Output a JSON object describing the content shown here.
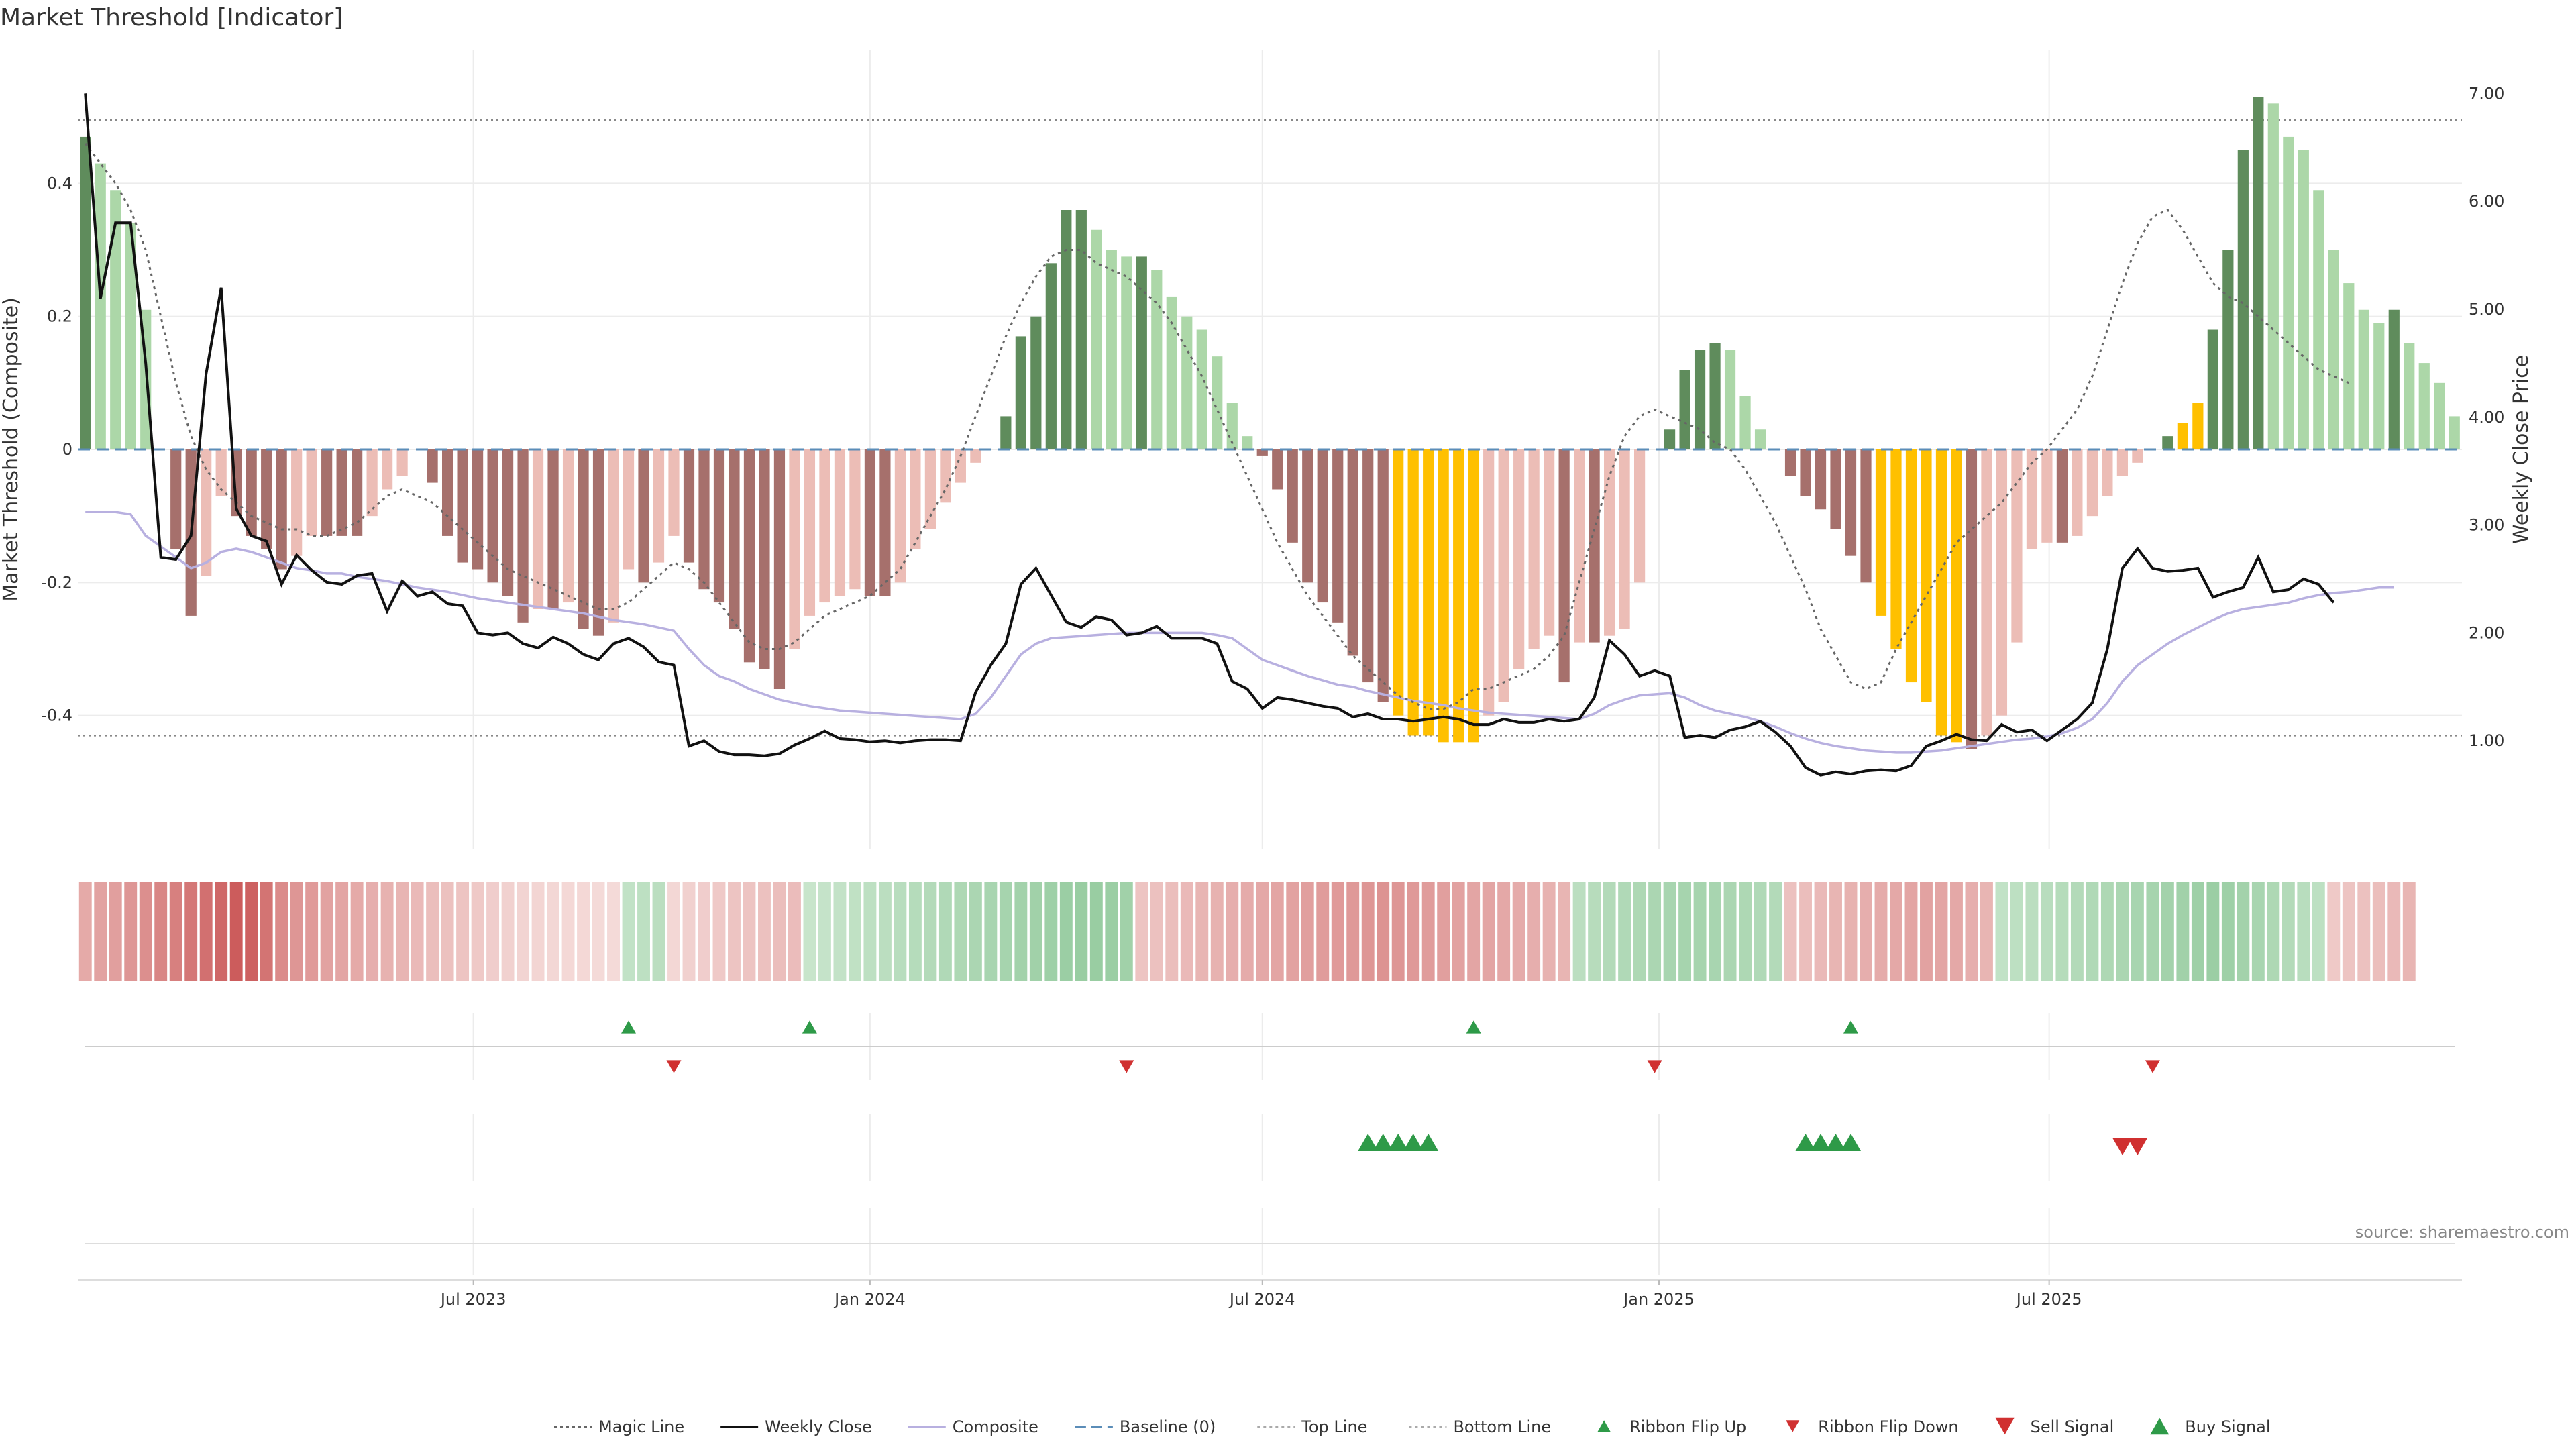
{
  "title": "Market Threshold [Indicator]",
  "source": "source: sharemaestro.com",
  "colors": {
    "pos_strong": "#5f8c5c",
    "pos_light": "#acd7a8",
    "neg_strong": "#a6706c",
    "neg_light": "#ecbdb6",
    "extreme": "#ffc000",
    "price": "#111111",
    "composite": "#b8b0e0",
    "magic": "#666666",
    "baseline": "#5b8db8",
    "threshold": "#888888",
    "buy": "#2e9a48",
    "sell": "#d03030",
    "grid": "#ececec"
  },
  "chart_data": {
    "type": "bar",
    "title": "Market Threshold [Indicator]",
    "ylabel": "Market Threshold (Composite)",
    "y2label": "Weekly Close Price",
    "ylim": [
      -0.6,
      0.6
    ],
    "y2lim": [
      0.0,
      7.4
    ],
    "yticks": [
      0.4,
      0.2,
      0,
      -0.2,
      -0.4
    ],
    "ytick_labels": [
      "0.4",
      "0.2",
      "0",
      "-0.2",
      "-0.4"
    ],
    "y2ticks": [
      7,
      6,
      5,
      4,
      3,
      2,
      1
    ],
    "y2tick_labels": [
      "7.00",
      "6.00",
      "5.00",
      "4.00",
      "3.00",
      "2.00",
      "1.00"
    ],
    "x_start": "2023-01-02",
    "x_step_days": 7,
    "xticks": [
      {
        "date": "2023-07-01",
        "label": "Jul 2023"
      },
      {
        "date": "2024-01-01",
        "label": "Jan 2024"
      },
      {
        "date": "2024-07-01",
        "label": "Jul 2024"
      },
      {
        "date": "2025-01-01",
        "label": "Jan 2025"
      },
      {
        "date": "2025-07-01",
        "label": "Jul 2025"
      }
    ],
    "top_line": 0.495,
    "bottom_line": -0.43,
    "baseline": 0,
    "bars": [
      0.47,
      0.43,
      0.39,
      0.34,
      0.21,
      0,
      -0.15,
      -0.25,
      -0.19,
      -0.07,
      -0.1,
      -0.13,
      -0.15,
      -0.18,
      -0.16,
      -0.13,
      -0.13,
      -0.13,
      -0.13,
      -0.1,
      -0.06,
      -0.04,
      0,
      -0.05,
      -0.13,
      -0.17,
      -0.18,
      -0.2,
      -0.22,
      -0.26,
      -0.24,
      -0.24,
      -0.23,
      -0.27,
      -0.28,
      -0.26,
      -0.18,
      -0.2,
      -0.17,
      -0.13,
      -0.17,
      -0.21,
      -0.23,
      -0.27,
      -0.32,
      -0.33,
      -0.36,
      -0.3,
      -0.25,
      -0.23,
      -0.22,
      -0.21,
      -0.22,
      -0.22,
      -0.2,
      -0.15,
      -0.12,
      -0.08,
      -0.05,
      -0.02,
      0,
      0.05,
      0.17,
      0.2,
      0.28,
      0.36,
      0.36,
      0.33,
      0.3,
      0.29,
      0.29,
      0.27,
      0.23,
      0.2,
      0.18,
      0.14,
      0.07,
      0.02,
      -0.01,
      -0.06,
      -0.14,
      -0.2,
      -0.23,
      -0.26,
      -0.31,
      -0.35,
      -0.38,
      -0.4,
      -0.43,
      -0.43,
      -0.44,
      -0.44,
      -0.44,
      -0.4,
      -0.38,
      -0.33,
      -0.3,
      -0.28,
      -0.35,
      -0.29,
      -0.29,
      -0.28,
      -0.27,
      -0.2,
      0,
      0.03,
      0.12,
      0.15,
      0.16,
      0.15,
      0.08,
      0.03,
      0,
      -0.04,
      -0.07,
      -0.09,
      -0.12,
      -0.16,
      -0.2,
      -0.25,
      -0.3,
      -0.35,
      -0.38,
      -0.43,
      -0.44,
      -0.45,
      -0.43,
      -0.4,
      -0.29,
      -0.15,
      -0.14,
      -0.14,
      -0.13,
      -0.1,
      -0.07,
      -0.04,
      -0.02,
      0,
      0.02,
      0.04,
      0.07,
      0.18,
      0.3,
      0.45,
      0.53,
      0.52,
      0.47,
      0.45,
      0.39,
      0.3,
      0.25,
      0.21,
      0.19,
      0.21,
      0.16,
      0.13,
      0.1,
      0.05
    ],
    "extreme_indices": [
      87,
      88,
      89,
      90,
      91,
      92,
      119,
      120,
      121,
      122,
      123,
      124,
      139,
      140
    ],
    "price": [
      7.0,
      5.1,
      5.8,
      5.8,
      4.5,
      2.7,
      2.68,
      2.9,
      4.4,
      5.2,
      3.15,
      2.9,
      2.85,
      2.45,
      2.72,
      2.58,
      2.47,
      2.45,
      2.53,
      2.55,
      2.2,
      2.48,
      2.34,
      2.38,
      2.27,
      2.25,
      2.0,
      1.98,
      2.0,
      1.9,
      1.86,
      1.96,
      1.9,
      1.8,
      1.75,
      1.9,
      1.95,
      1.87,
      1.73,
      1.7,
      0.95,
      1.0,
      0.9,
      0.87,
      0.87,
      0.86,
      0.88,
      0.96,
      1.02,
      1.09,
      1.02,
      1.01,
      0.99,
      1.0,
      0.98,
      1.0,
      1.01,
      1.01,
      1.0,
      1.45,
      1.7,
      1.9,
      2.45,
      2.6,
      2.35,
      2.1,
      2.05,
      2.15,
      2.12,
      1.98,
      2.0,
      2.06,
      1.95,
      1.95,
      1.95,
      1.9,
      1.55,
      1.48,
      1.3,
      1.4,
      1.38,
      1.35,
      1.32,
      1.3,
      1.22,
      1.25,
      1.2,
      1.2,
      1.18,
      1.2,
      1.22,
      1.2,
      1.15,
      1.15,
      1.2,
      1.17,
      1.17,
      1.2,
      1.18,
      1.2,
      1.4,
      1.93,
      1.8,
      1.6,
      1.65,
      1.6,
      1.03,
      1.05,
      1.03,
      1.1,
      1.13,
      1.18,
      1.08,
      0.95,
      0.75,
      0.68,
      0.71,
      0.69,
      0.72,
      0.73,
      0.72,
      0.77,
      0.95,
      1.0,
      1.06,
      1.01,
      1.0,
      1.15,
      1.08,
      1.1,
      1.0,
      1.1,
      1.2,
      1.35,
      1.85,
      2.6,
      2.78,
      2.6,
      2.57,
      2.58,
      2.6,
      2.33,
      2.38,
      2.42,
      2.7,
      2.38,
      2.4,
      2.5,
      2.45,
      2.28
    ],
    "composite": [
      3.12,
      3.12,
      3.12,
      3.1,
      2.9,
      2.8,
      2.7,
      2.6,
      2.65,
      2.75,
      2.78,
      2.75,
      2.7,
      2.65,
      2.6,
      2.58,
      2.55,
      2.55,
      2.52,
      2.5,
      2.48,
      2.45,
      2.42,
      2.4,
      2.38,
      2.35,
      2.32,
      2.3,
      2.28,
      2.26,
      2.24,
      2.22,
      2.2,
      2.18,
      2.15,
      2.12,
      2.1,
      2.08,
      2.05,
      2.02,
      1.85,
      1.7,
      1.6,
      1.55,
      1.48,
      1.43,
      1.38,
      1.35,
      1.32,
      1.3,
      1.28,
      1.27,
      1.26,
      1.25,
      1.24,
      1.23,
      1.22,
      1.21,
      1.2,
      1.25,
      1.4,
      1.6,
      1.8,
      1.9,
      1.95,
      1.96,
      1.97,
      1.98,
      1.99,
      2.0,
      2.0,
      2.0,
      2.0,
      2.0,
      2.0,
      1.98,
      1.95,
      1.85,
      1.75,
      1.7,
      1.65,
      1.6,
      1.56,
      1.52,
      1.5,
      1.46,
      1.43,
      1.4,
      1.37,
      1.35,
      1.33,
      1.3,
      1.28,
      1.26,
      1.25,
      1.24,
      1.23,
      1.22,
      1.21,
      1.2,
      1.25,
      1.33,
      1.38,
      1.42,
      1.43,
      1.44,
      1.4,
      1.33,
      1.28,
      1.25,
      1.22,
      1.18,
      1.13,
      1.07,
      1.02,
      0.98,
      0.95,
      0.93,
      0.91,
      0.9,
      0.89,
      0.89,
      0.9,
      0.91,
      0.93,
      0.95,
      0.97,
      0.99,
      1.01,
      1.02,
      1.04,
      1.07,
      1.12,
      1.2,
      1.35,
      1.55,
      1.7,
      1.8,
      1.9,
      1.98,
      2.05,
      2.12,
      2.18,
      2.22,
      2.24,
      2.26,
      2.28,
      2.32,
      2.35,
      2.37,
      2.38,
      2.4,
      2.42,
      2.42
    ],
    "magic_line": [
      0.46,
      0.43,
      0.4,
      0.36,
      0.3,
      0.2,
      0.1,
      0.02,
      -0.03,
      -0.06,
      -0.08,
      -0.1,
      -0.11,
      -0.12,
      -0.12,
      -0.13,
      -0.13,
      -0.12,
      -0.11,
      -0.09,
      -0.07,
      -0.06,
      -0.07,
      -0.08,
      -0.1,
      -0.12,
      -0.14,
      -0.16,
      -0.18,
      -0.19,
      -0.2,
      -0.21,
      -0.22,
      -0.23,
      -0.24,
      -0.24,
      -0.23,
      -0.21,
      -0.19,
      -0.17,
      -0.18,
      -0.2,
      -0.23,
      -0.26,
      -0.29,
      -0.3,
      -0.3,
      -0.29,
      -0.27,
      -0.25,
      -0.24,
      -0.23,
      -0.22,
      -0.2,
      -0.18,
      -0.14,
      -0.1,
      -0.06,
      -0.01,
      0.05,
      0.11,
      0.17,
      0.22,
      0.26,
      0.29,
      0.3,
      0.3,
      0.28,
      0.27,
      0.26,
      0.24,
      0.22,
      0.19,
      0.15,
      0.11,
      0.06,
      0.01,
      -0.04,
      -0.09,
      -0.14,
      -0.18,
      -0.22,
      -0.25,
      -0.28,
      -0.31,
      -0.33,
      -0.35,
      -0.37,
      -0.38,
      -0.39,
      -0.39,
      -0.38,
      -0.36,
      -0.36,
      -0.35,
      -0.34,
      -0.33,
      -0.31,
      -0.28,
      -0.2,
      -0.12,
      -0.04,
      0.02,
      0.05,
      0.06,
      0.05,
      0.04,
      0.03,
      0.01,
      0,
      -0.03,
      -0.07,
      -0.11,
      -0.16,
      -0.21,
      -0.27,
      -0.31,
      -0.35,
      -0.36,
      -0.35,
      -0.3,
      -0.26,
      -0.22,
      -0.18,
      -0.14,
      -0.12,
      -0.1,
      -0.08,
      -0.05,
      -0.02,
      0,
      0.03,
      0.06,
      0.11,
      0.18,
      0.25,
      0.31,
      0.35,
      0.36,
      0.33,
      0.29,
      0.25,
      0.23,
      0.22,
      0.2,
      0.18,
      0.16,
      0.14,
      0.12,
      0.11,
      0.1
    ],
    "ribbon": [
      -0.35,
      -0.4,
      -0.42,
      -0.48,
      -0.52,
      -0.58,
      -0.62,
      -0.68,
      -0.72,
      -0.78,
      -0.85,
      -0.82,
      -0.7,
      -0.55,
      -0.48,
      -0.45,
      -0.4,
      -0.38,
      -0.35,
      -0.32,
      -0.3,
      -0.28,
      -0.25,
      -0.22,
      -0.2,
      -0.18,
      -0.15,
      -0.12,
      -0.1,
      -0.08,
      -0.07,
      -0.06,
      -0.05,
      -0.05,
      -0.04,
      -0.04,
      0.25,
      0.28,
      0.3,
      -0.06,
      -0.1,
      -0.12,
      -0.15,
      -0.18,
      -0.18,
      -0.2,
      -0.22,
      -0.23,
      0.2,
      0.22,
      0.24,
      0.26,
      0.28,
      0.3,
      0.32,
      0.34,
      0.36,
      0.38,
      0.4,
      0.42,
      0.44,
      0.46,
      0.48,
      0.5,
      0.52,
      0.54,
      0.56,
      0.56,
      0.54,
      0.5,
      -0.18,
      -0.2,
      -0.22,
      -0.25,
      -0.28,
      -0.3,
      -0.32,
      -0.34,
      -0.36,
      -0.38,
      -0.4,
      -0.42,
      -0.44,
      -0.45,
      -0.46,
      -0.48,
      -0.5,
      -0.48,
      -0.46,
      -0.44,
      -0.42,
      -0.4,
      -0.38,
      -0.38,
      -0.36,
      -0.34,
      -0.32,
      -0.3,
      -0.28,
      0.3,
      0.33,
      0.36,
      0.38,
      0.4,
      0.42,
      0.44,
      0.46,
      0.46,
      0.44,
      0.42,
      0.4,
      0.38,
      0.36,
      -0.2,
      -0.22,
      -0.25,
      -0.28,
      -0.3,
      -0.32,
      -0.34,
      -0.36,
      -0.38,
      -0.4,
      -0.38,
      -0.36,
      -0.32,
      -0.28,
      0.25,
      0.28,
      0.3,
      0.32,
      0.34,
      0.36,
      0.38,
      0.4,
      0.42,
      0.44,
      0.46,
      0.48,
      0.5,
      0.52,
      0.54,
      0.52,
      0.48,
      0.44,
      0.4,
      0.36,
      0.32,
      0.28,
      -0.15,
      -0.18,
      -0.2,
      -0.22,
      -0.25,
      -0.28
    ],
    "ribbon_flip_up": [
      36,
      48,
      92,
      117
    ],
    "ribbon_flip_down": [
      39,
      69,
      104,
      137
    ],
    "buy_signal": [
      85,
      86,
      87,
      88,
      89,
      114,
      115,
      116,
      117
    ],
    "sell_signal": [
      135,
      136
    ],
    "legend": [
      {
        "label": "Magic Line",
        "kind": "dotted-line",
        "color": "#666666"
      },
      {
        "label": "Weekly Close",
        "kind": "line",
        "color": "#111111"
      },
      {
        "label": "Composite",
        "kind": "line",
        "color": "#b8b0e0"
      },
      {
        "label": "Baseline (0)",
        "kind": "dashed-line",
        "color": "#5b8db8"
      },
      {
        "label": "Top Line",
        "kind": "dotted-line",
        "color": "#aaaaaa"
      },
      {
        "label": "Bottom Line",
        "kind": "dotted-line",
        "color": "#aaaaaa"
      },
      {
        "label": "Ribbon Flip Up",
        "kind": "triangle-up-small",
        "color": "#2e9a48"
      },
      {
        "label": "Ribbon Flip Down",
        "kind": "triangle-down-small",
        "color": "#d03030"
      },
      {
        "label": "Sell Signal",
        "kind": "triangle-down",
        "color": "#d03030"
      },
      {
        "label": "Buy Signal",
        "kind": "triangle-up",
        "color": "#2e9a48"
      }
    ]
  }
}
